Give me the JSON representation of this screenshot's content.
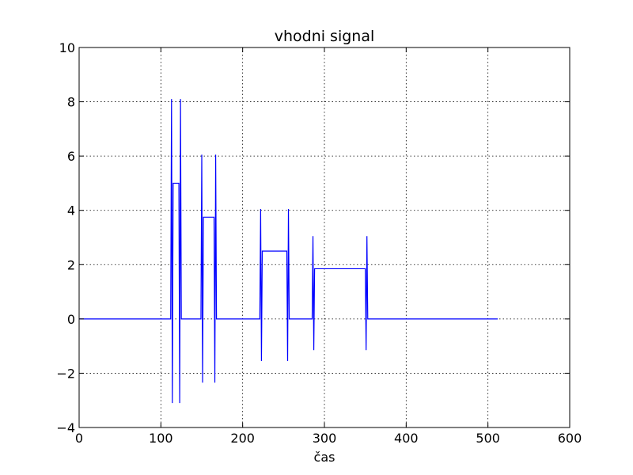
{
  "chart_data": {
    "type": "line",
    "title": "vhodni signal",
    "xlabel": "čas",
    "ylabel": "",
    "xlim": [
      0,
      600
    ],
    "ylim": [
      -4,
      10
    ],
    "xticks": [
      0,
      100,
      200,
      300,
      400,
      500,
      600
    ],
    "yticks": [
      -4,
      -2,
      0,
      2,
      4,
      6,
      8,
      10
    ],
    "xtick_labels": [
      "0",
      "100",
      "200",
      "300",
      "400",
      "500",
      "600"
    ],
    "ytick_labels": [
      "−4",
      "−2",
      "0",
      "2",
      "4",
      "6",
      "8",
      "10"
    ],
    "grid": true,
    "color": "#0000ff",
    "series": [
      {
        "x": [
          0,
          112,
          113,
          114,
          115,
          116,
          117,
          118,
          119,
          120,
          121,
          122,
          123,
          124,
          125,
          126,
          127,
          128,
          149,
          150,
          151,
          152,
          153,
          154,
          155,
          164,
          165,
          166,
          167,
          168,
          169,
          170,
          221,
          222,
          223,
          224,
          225,
          226,
          253,
          254,
          255,
          256,
          257,
          285,
          286,
          287,
          288,
          289,
          290,
          349,
          350,
          351,
          352,
          353,
          512
        ],
        "y": [
          0,
          0,
          8.1,
          -3.1,
          5.0,
          5.0,
          5.0,
          5.0,
          5.0,
          5.0,
          5.0,
          5.0,
          -3.1,
          8.1,
          0,
          0,
          0,
          0,
          0,
          6.05,
          -2.35,
          3.75,
          3.75,
          3.75,
          3.75,
          3.75,
          3.75,
          -2.35,
          6.05,
          0,
          0,
          0,
          0,
          4.05,
          -1.55,
          2.5,
          2.5,
          2.5,
          2.5,
          2.5,
          -1.55,
          4.05,
          0,
          0,
          3.05,
          -1.15,
          1.85,
          1.85,
          1.85,
          1.85,
          1.85,
          -1.15,
          3.05,
          0,
          0
        ]
      }
    ]
  }
}
